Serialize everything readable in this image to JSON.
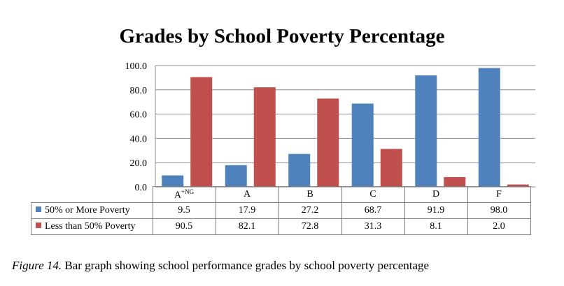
{
  "chart_data": {
    "type": "bar",
    "title": "Grades by School Poverty Percentage",
    "categories": [
      "A",
      "A",
      "B",
      "C",
      "D",
      "F"
    ],
    "category_superscripts": [
      "+NG",
      "",
      "",
      "",
      "",
      ""
    ],
    "series": [
      {
        "name": "50% or More Poverty",
        "color": "#4f81bd",
        "values": [
          9.5,
          17.9,
          27.2,
          68.7,
          91.9,
          98.0
        ],
        "labels": [
          "9.5",
          "17.9",
          "27.2",
          "68.7",
          "91.9",
          "98.0"
        ]
      },
      {
        "name": "Less than 50% Poverty",
        "color": "#c0504d",
        "values": [
          90.5,
          82.1,
          72.8,
          31.3,
          8.1,
          2.0
        ],
        "labels": [
          "90.5",
          "82.1",
          "72.8",
          "31.3",
          "8.1",
          "2.0"
        ]
      }
    ],
    "ylim": [
      0,
      100
    ],
    "y_ticks": [
      "0.0",
      "20.0",
      "40.0",
      "60.0",
      "80.0",
      "100.0"
    ],
    "grid": true,
    "legend": "data-table"
  },
  "caption": {
    "label": "Figure 14.",
    "text": " Bar graph showing school performance grades by school poverty percentage"
  }
}
